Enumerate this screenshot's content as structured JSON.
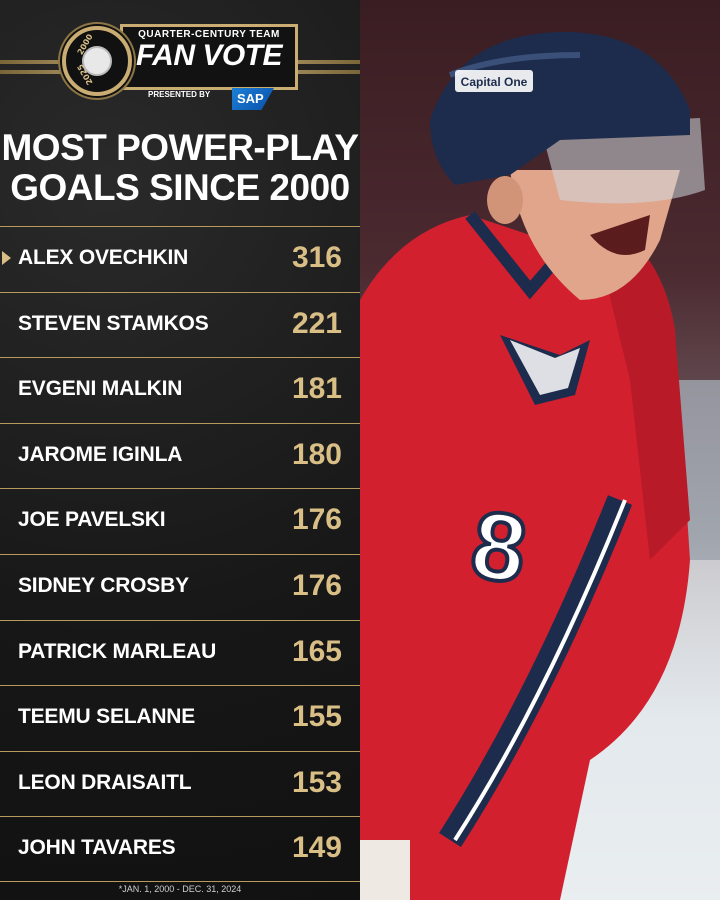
{
  "header": {
    "top_line": "QUARTER-CENTURY TEAM",
    "title": "FAN VOTE",
    "presented_by": "PRESENTED BY",
    "sponsor": "SAP",
    "badge_year_top": "2000",
    "badge_year_bottom": "2025"
  },
  "headline": {
    "line1": "MOST POWER-PLAY",
    "line2": "GOALS SINCE 2000"
  },
  "leaders": [
    {
      "name": "ALEX OVECHKIN",
      "goals": "316"
    },
    {
      "name": "STEVEN STAMKOS",
      "goals": "221"
    },
    {
      "name": "EVGENI MALKIN",
      "goals": "181"
    },
    {
      "name": "JAROME IGINLA",
      "goals": "180"
    },
    {
      "name": "JOE PAVELSKI",
      "goals": "176"
    },
    {
      "name": "SIDNEY CROSBY",
      "goals": "176"
    },
    {
      "name": "PATRICK MARLEAU",
      "goals": "165"
    },
    {
      "name": "TEEMU SELANNE",
      "goals": "155"
    },
    {
      "name": "LEON DRAISAITL",
      "goals": "153"
    },
    {
      "name": "JOHN TAVARES",
      "goals": "149"
    }
  ],
  "footnote": "*JAN. 1, 2000 - DEC. 31, 2024",
  "photo": {
    "jersey_number": "8",
    "helmet_sponsor": "Capital One"
  },
  "colors": {
    "gold": "#d9bf86",
    "panel": "#171717",
    "jersey_red": "#d3202f",
    "helmet_navy": "#1d2c4c"
  }
}
